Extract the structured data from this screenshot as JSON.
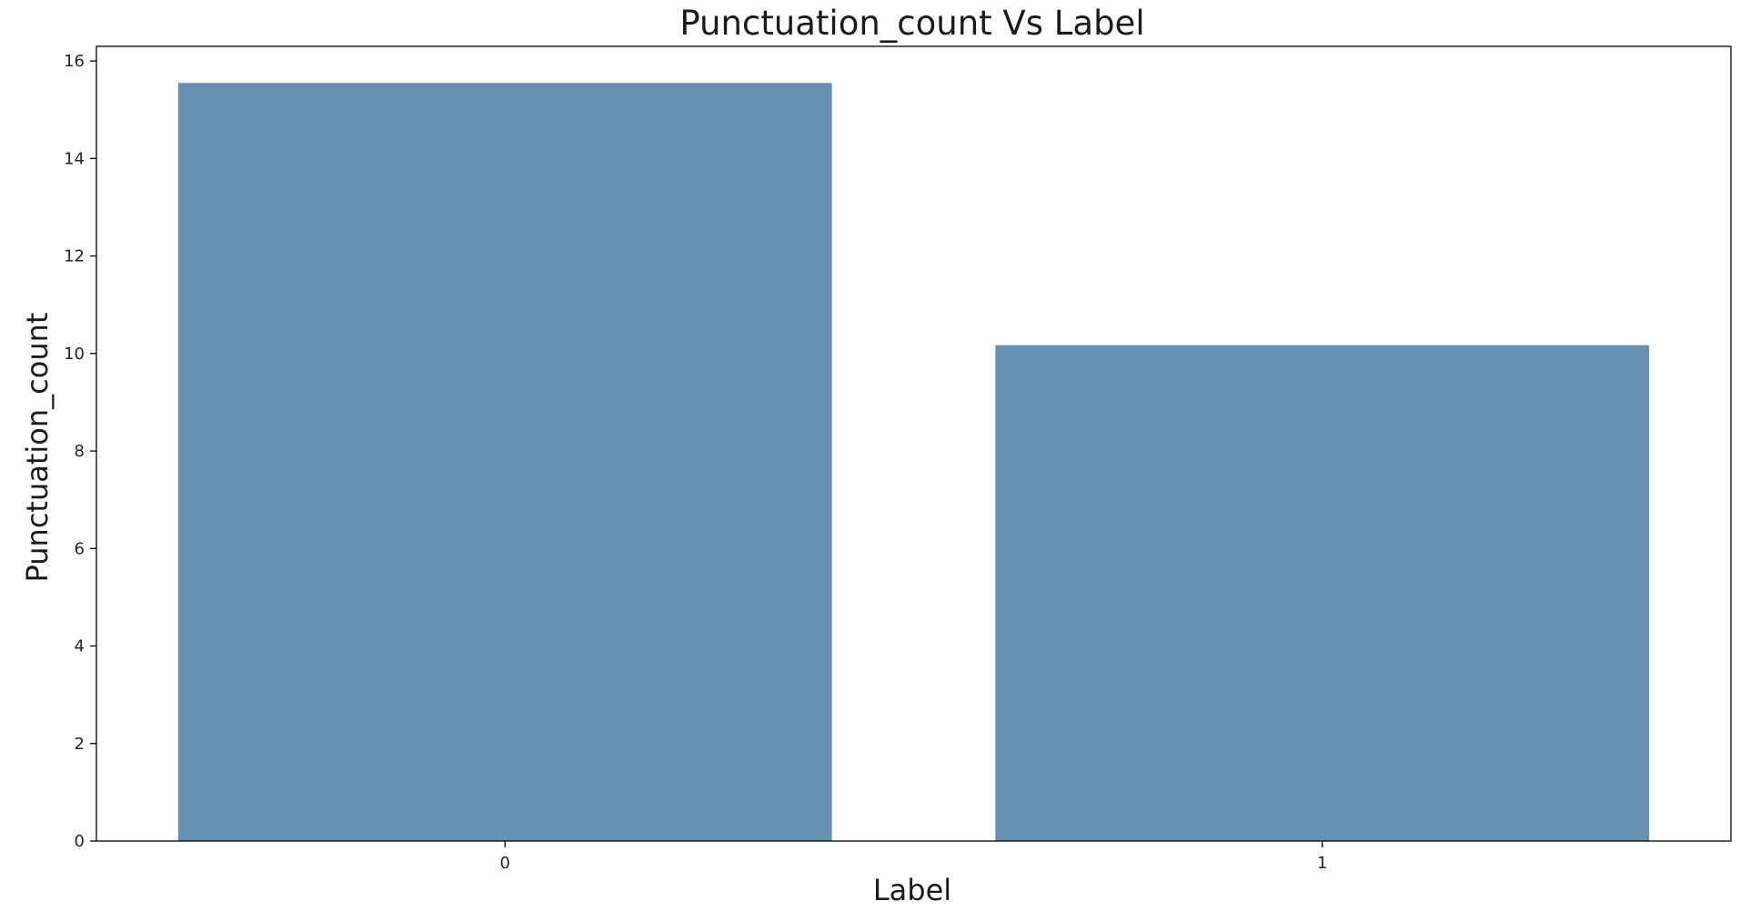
{
  "chart_data": {
    "type": "bar",
    "title": "Punctuation_count Vs Label",
    "xlabel": "Label",
    "ylabel": "Punctuation_count",
    "categories": [
      "0",
      "1"
    ],
    "values": [
      15.55,
      10.17
    ],
    "ylim": [
      0,
      16.3
    ],
    "yticks": [
      0,
      2,
      4,
      6,
      8,
      10,
      12,
      14,
      16
    ],
    "grid": false,
    "legend": "none",
    "bar_color": "#6890b3",
    "axis_color": "#000000"
  }
}
